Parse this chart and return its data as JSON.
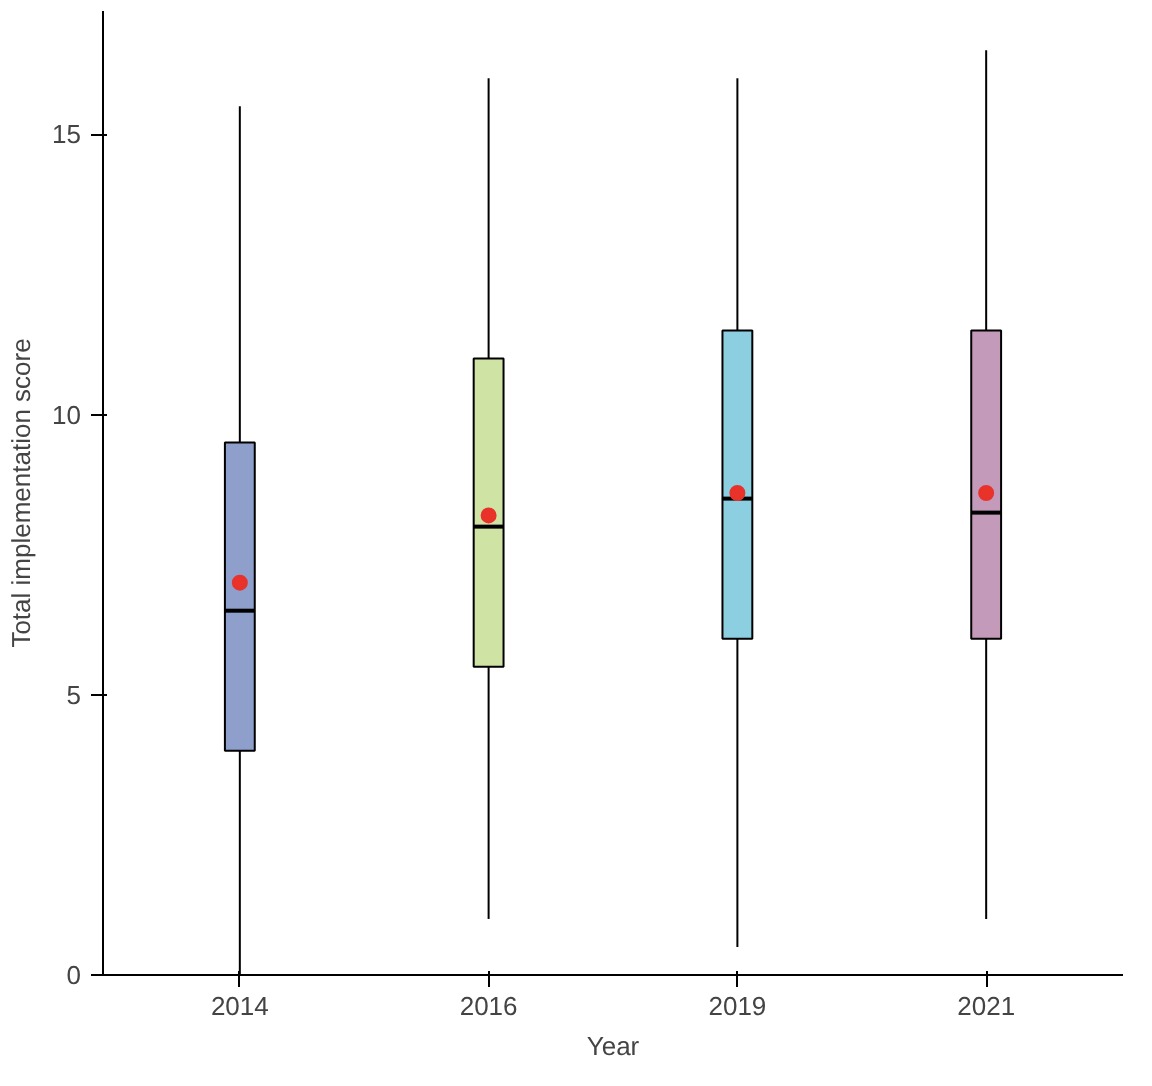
{
  "chart_data": {
    "type": "box",
    "xlabel": "Year",
    "ylabel": "Total implementation score",
    "categories": [
      "2014",
      "2016",
      "2019",
      "2021"
    ],
    "colors": [
      "#8e9fcb",
      "#cfe3a5",
      "#8ccfe0",
      "#c49abb"
    ],
    "boxes": [
      {
        "low": 0,
        "q1": 4,
        "median": 6.5,
        "q3": 9.5,
        "high": 15.5,
        "mean": 7
      },
      {
        "low": 1,
        "q1": 5.5,
        "median": 8,
        "q3": 11,
        "high": 16,
        "mean": 8.2
      },
      {
        "low": 0.5,
        "q1": 6,
        "median": 8.5,
        "q3": 11.5,
        "high": 16,
        "mean": 8.6
      },
      {
        "low": 1,
        "q1": 6,
        "median": 8.25,
        "q3": 11.5,
        "high": 16.5,
        "mean": 8.6
      }
    ],
    "ylim": [
      0,
      17.2
    ],
    "yticks": [
      0,
      5,
      10,
      15
    ],
    "grid": false
  }
}
